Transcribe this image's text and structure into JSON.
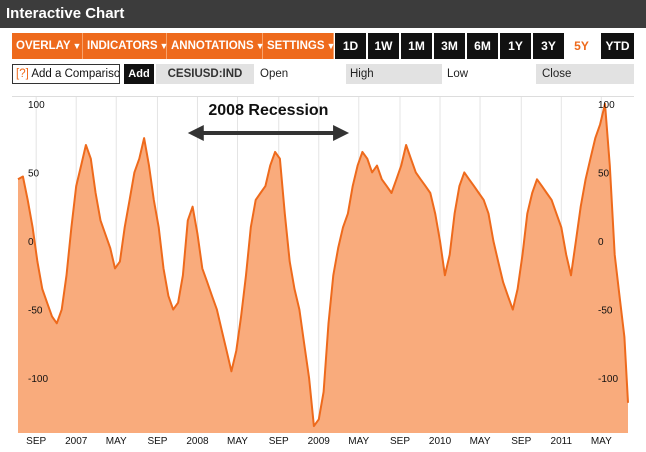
{
  "window": {
    "title": "Interactive Chart"
  },
  "toolbar": {
    "menus": [
      {
        "label": "OVERLAY",
        "caret": "▼"
      },
      {
        "label": "INDICATORS",
        "caret": "▼"
      },
      {
        "label": "ANNOTATIONS",
        "caret": "▼"
      },
      {
        "label": "SETTINGS",
        "caret": "▼"
      }
    ],
    "ranges": [
      "1D",
      "1W",
      "1M",
      "3M",
      "6M",
      "1Y",
      "3Y",
      "5Y",
      "YTD"
    ],
    "active_range": "5Y"
  },
  "comparison": {
    "bracket": "[?]",
    "placeholder": "Add a Comparison",
    "add_label": "Add"
  },
  "quote": {
    "ticker": "CESIUSD:IND",
    "open_label": "Open",
    "open_value": "",
    "high_label": "High",
    "high_value": "",
    "low_label": "Low",
    "low_value": "",
    "close_label": "Close",
    "close_value": ""
  },
  "colors": {
    "accent": "#ee6a1c",
    "area_fill": "#f9ab7c",
    "line": "#ee6a1c",
    "dark": "#111111",
    "titlebar": "#3c3c3c"
  },
  "annotation": {
    "text": "2008 Recession",
    "from": "2007.92",
    "to": "2009.25"
  },
  "chart_data": {
    "type": "area",
    "title": "",
    "xlabel": "",
    "ylabel": "",
    "ylim": [
      -140,
      105
    ],
    "xlim": [
      2006.52,
      2011.55
    ],
    "y_ticks": [
      100,
      50,
      0,
      -50,
      -100
    ],
    "x_ticks": [
      {
        "label": "SEP",
        "x": 2006.67
      },
      {
        "label": "2007",
        "x": 2007.0
      },
      {
        "label": "MAY",
        "x": 2007.33
      },
      {
        "label": "SEP",
        "x": 2007.67
      },
      {
        "label": "2008",
        "x": 2008.0
      },
      {
        "label": "MAY",
        "x": 2008.33
      },
      {
        "label": "SEP",
        "x": 2008.67
      },
      {
        "label": "2009",
        "x": 2009.0
      },
      {
        "label": "MAY",
        "x": 2009.33
      },
      {
        "label": "SEP",
        "x": 2009.67
      },
      {
        "label": "2010",
        "x": 2010.0
      },
      {
        "label": "MAY",
        "x": 2010.33
      },
      {
        "label": "SEP",
        "x": 2010.67
      },
      {
        "label": "2011",
        "x": 2011.0
      },
      {
        "label": "MAY",
        "x": 2011.33
      }
    ],
    "grid": "vertical",
    "series": [
      {
        "x": [
          2006.52,
          2006.56,
          2006.6,
          2006.64,
          2006.68,
          2006.72,
          2006.76,
          2006.8,
          2006.84,
          2006.88,
          2006.92,
          2006.96,
          2007.0,
          2007.04,
          2007.08,
          2007.12,
          2007.16,
          2007.2,
          2007.24,
          2007.28,
          2007.32,
          2007.36,
          2007.4,
          2007.44,
          2007.48,
          2007.52,
          2007.56,
          2007.6,
          2007.64,
          2007.68,
          2007.72,
          2007.76,
          2007.8,
          2007.84,
          2007.88,
          2007.92,
          2007.96,
          2008.0,
          2008.04,
          2008.08,
          2008.12,
          2008.16,
          2008.2,
          2008.24,
          2008.28,
          2008.32,
          2008.36,
          2008.4,
          2008.44,
          2008.48,
          2008.52,
          2008.56,
          2008.6,
          2008.64,
          2008.68,
          2008.72,
          2008.76,
          2008.8,
          2008.84,
          2008.88,
          2008.92,
          2008.96,
          2009.0,
          2009.04,
          2009.08,
          2009.12,
          2009.16,
          2009.2,
          2009.24,
          2009.28,
          2009.32,
          2009.36,
          2009.4,
          2009.44,
          2009.48,
          2009.52,
          2009.56,
          2009.6,
          2009.64,
          2009.68,
          2009.72,
          2009.76,
          2009.8,
          2009.84,
          2009.88,
          2009.92,
          2009.96,
          2010.0,
          2010.04,
          2010.08,
          2010.12,
          2010.16,
          2010.2,
          2010.24,
          2010.28,
          2010.32,
          2010.36,
          2010.4,
          2010.44,
          2010.48,
          2010.52,
          2010.56,
          2010.6,
          2010.64,
          2010.68,
          2010.72,
          2010.76,
          2010.8,
          2010.84,
          2010.88,
          2010.92,
          2010.96,
          2011.0,
          2011.04,
          2011.08,
          2011.12,
          2011.16,
          2011.2,
          2011.24,
          2011.28,
          2011.32,
          2011.36,
          2011.4,
          2011.44,
          2011.48,
          2011.52,
          2011.55
        ],
        "values": [
          45,
          47,
          30,
          10,
          -15,
          -35,
          -45,
          -55,
          -60,
          -50,
          -25,
          10,
          40,
          55,
          70,
          60,
          35,
          15,
          5,
          -5,
          -20,
          -15,
          10,
          30,
          50,
          60,
          75,
          55,
          30,
          10,
          -20,
          -40,
          -50,
          -45,
          -25,
          15,
          25,
          5,
          -20,
          -30,
          -40,
          -50,
          -65,
          -80,
          -95,
          -80,
          -55,
          -25,
          10,
          30,
          35,
          40,
          55,
          65,
          60,
          20,
          -15,
          -35,
          -50,
          -75,
          -100,
          -135,
          -130,
          -110,
          -60,
          -25,
          -5,
          10,
          20,
          40,
          55,
          65,
          60,
          50,
          55,
          45,
          40,
          35,
          45,
          55,
          70,
          60,
          50,
          45,
          40,
          35,
          20,
          0,
          -25,
          -10,
          20,
          40,
          50,
          45,
          40,
          35,
          30,
          20,
          0,
          -15,
          -30,
          -40,
          -50,
          -35,
          -10,
          20,
          35,
          45,
          40,
          35,
          30,
          20,
          10,
          -10,
          -25,
          0,
          25,
          45,
          60,
          75,
          85,
          100,
          55,
          -10,
          -40,
          -70,
          -118
        ]
      }
    ]
  }
}
